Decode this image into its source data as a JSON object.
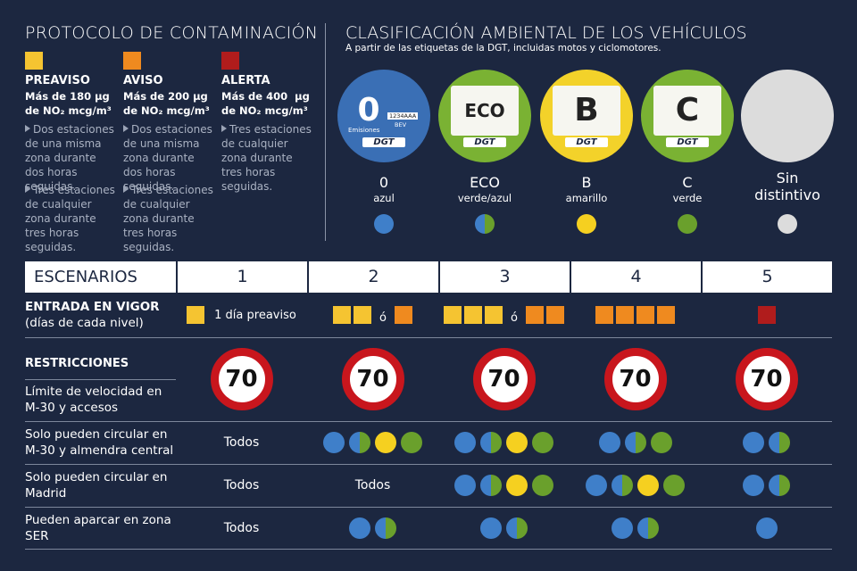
{
  "protocol": {
    "title": "PROTOCOLO DE CONTAMINACIÓN",
    "levels": [
      {
        "name": "PREAVISO",
        "color": "#f5c431",
        "threshold": "Más de 180 µg",
        "unit": "de NO₂ mcg/m³",
        "conditions": [
          "Dos estaciones de una misma zona durante dos horas seguidas.",
          "Tres estaciones de cualquier zona durante tres horas seguidas."
        ]
      },
      {
        "name": "AVISO",
        "color": "#ef8a1f",
        "threshold": "Más de 200 µg",
        "unit": "de NO₂ mcg/m³",
        "conditions": [
          "Dos estaciones de una misma zona durante dos horas seguidas.",
          "Tres estaciones de cualquier zona durante tres horas seguidas."
        ]
      },
      {
        "name": "ALERTA",
        "color": "#b01c1c",
        "threshold": "Más de 400  µg",
        "unit": "de NO₂ mcg/m³",
        "conditions": [
          "Tres estaciones de cualquier zona durante tres horas seguidas."
        ]
      }
    ]
  },
  "classification": {
    "title": "CLASIFICACIÓN AMBIENTAL DE LOS VEHÍCULOS",
    "subtitle": "A partir de las etiquetas de la DGT, incluidas motos y ciclomotores.",
    "labels": [
      {
        "name": "0",
        "color_name": "azul",
        "colors": [
          "#3f7fc9"
        ],
        "sticker": {
          "background": "#3a6fb5",
          "mark": "0",
          "caption": "Emisiones",
          "plate": "1234AAA",
          "fuel": "BEV",
          "brand": "DGT"
        }
      },
      {
        "name": "ECO",
        "color_name": "verde/azul",
        "colors": [
          "#3f7fc9",
          "#6aa02c"
        ],
        "sticker": {
          "background": "#7ab233",
          "mark": "ECO",
          "brand": "DGT"
        }
      },
      {
        "name": "B",
        "color_name": "amarillo",
        "colors": [
          "#f5d020"
        ],
        "sticker": {
          "background": "#f3d22a",
          "mark": "B",
          "brand": "DGT"
        }
      },
      {
        "name": "C",
        "color_name": "verde",
        "colors": [
          "#6aa02c"
        ],
        "sticker": {
          "background": "#7ab233",
          "mark": "C",
          "brand": "DGT"
        }
      },
      {
        "name": "Sin distintivo",
        "colors": [
          "#dcdcdc"
        ],
        "sticker": {
          "background": "#dcdcdc"
        }
      }
    ]
  },
  "table": {
    "header": [
      "ESCENARIOS",
      "1",
      "2",
      "3",
      "4",
      "5"
    ],
    "rows": [
      {
        "label": "ENTRADA EN VIGOR",
        "sublabel": "(días de cada nivel)",
        "cells": [
          {
            "days": [
              "PREAVISO"
            ],
            "text": "1 día preaviso"
          },
          {
            "days": [
              "PREAVISO",
              "PREAVISO"
            ],
            "or": "ó",
            "alt": [
              "AVISO"
            ]
          },
          {
            "days": [
              "PREAVISO",
              "PREAVISO",
              "PREAVISO"
            ],
            "or": "ó",
            "alt": [
              "AVISO",
              "AVISO"
            ]
          },
          {
            "days": [
              "AVISO",
              "AVISO",
              "AVISO",
              "AVISO"
            ]
          },
          {
            "days": [
              "ALERTA"
            ]
          }
        ]
      },
      {
        "section": "RESTRICCIONES",
        "label": "Límite de velocidad en M-30 y accesos",
        "cells": [
          {
            "limit": "70"
          },
          {
            "limit": "70"
          },
          {
            "limit": "70"
          },
          {
            "limit": "70"
          },
          {
            "limit": "70"
          }
        ]
      },
      {
        "label": "Solo pueden circular en M-30 y almendra central",
        "cells": [
          {
            "text": "Todos"
          },
          {
            "labels": [
              "0",
              "ECO",
              "B",
              "C"
            ]
          },
          {
            "labels": [
              "0",
              "ECO",
              "B",
              "C"
            ]
          },
          {
            "labels": [
              "0",
              "ECO",
              "C"
            ]
          },
          {
            "labels": [
              "0",
              "ECO"
            ]
          }
        ]
      },
      {
        "label": "Solo pueden circular en Madrid",
        "cells": [
          {
            "text": "Todos"
          },
          {
            "text": "Todos"
          },
          {
            "labels": [
              "0",
              "ECO",
              "B",
              "C"
            ]
          },
          {
            "labels": [
              "0",
              "ECO",
              "B",
              "C"
            ]
          },
          {
            "labels": [
              "0",
              "ECO"
            ]
          }
        ]
      },
      {
        "label": "Pueden aparcar en zona SER",
        "cells": [
          {
            "text": "Todos"
          },
          {
            "labels": [
              "0",
              "ECO"
            ]
          },
          {
            "labels": [
              "0",
              "ECO"
            ]
          },
          {
            "labels": [
              "0",
              "ECO"
            ]
          },
          {
            "labels": [
              "0"
            ]
          }
        ]
      }
    ]
  }
}
